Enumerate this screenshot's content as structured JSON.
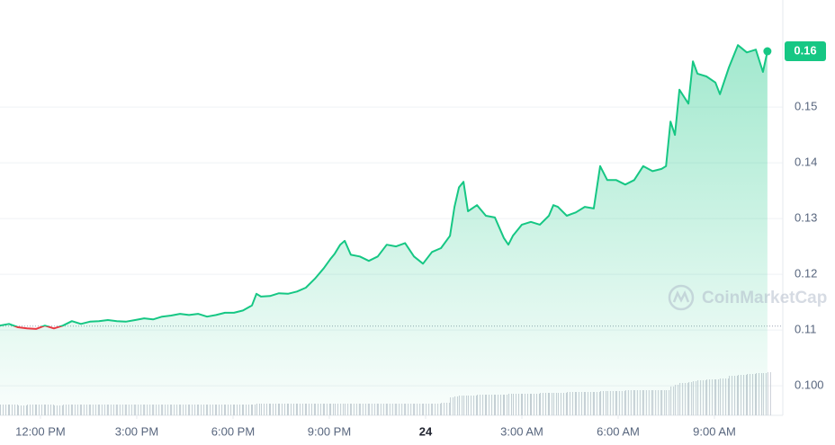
{
  "chart_data": {
    "type": "line",
    "x": [
      10.74,
      11.02,
      11.3,
      11.58,
      11.86,
      12.14,
      12.42,
      12.7,
      12.98,
      13.26,
      13.54,
      13.82,
      14.1,
      14.38,
      14.66,
      14.95,
      15.23,
      15.51,
      15.79,
      16.07,
      16.35,
      16.63,
      16.91,
      17.19,
      17.47,
      17.75,
      18.03,
      18.31,
      18.59,
      18.73,
      18.87,
      19.15,
      19.43,
      19.71,
      19.99,
      20.27,
      20.55,
      20.83,
      21.03,
      21.17,
      21.34,
      21.48,
      21.67,
      21.95,
      22.23,
      22.51,
      22.79,
      23.08,
      23.36,
      23.64,
      23.92,
      24.2,
      24.48,
      24.76,
      24.9,
      25.04,
      25.18,
      25.32,
      25.6,
      25.88,
      26.16,
      26.44,
      26.58,
      26.72,
      27.0,
      27.28,
      27.56,
      27.84,
      27.98,
      28.12,
      28.4,
      28.68,
      28.96,
      29.24,
      29.44,
      29.66,
      29.94,
      30.22,
      30.5,
      30.78,
      31.07,
      31.35,
      31.49,
      31.63,
      31.77,
      31.91,
      32.19,
      32.33,
      32.47,
      32.75,
      33.03,
      33.17,
      33.45,
      33.73,
      34.01,
      34.29,
      34.51,
      34.65
    ],
    "series": [
      {
        "color": "#16c784",
        "values": [
          0.1108,
          0.1111,
          0.1105,
          0.1103,
          0.1102,
          0.1108,
          0.1103,
          0.1108,
          0.1116,
          0.1111,
          0.1115,
          0.1116,
          0.1118,
          0.1116,
          0.1115,
          0.1118,
          0.1121,
          0.1119,
          0.1124,
          0.1126,
          0.1129,
          0.1127,
          0.1129,
          0.1124,
          0.1127,
          0.1131,
          0.1131,
          0.1135,
          0.1144,
          0.1165,
          0.116,
          0.1161,
          0.1166,
          0.1165,
          0.1169,
          0.1176,
          0.1192,
          0.1211,
          0.1227,
          0.1237,
          0.1253,
          0.126,
          0.1235,
          0.1232,
          0.1224,
          0.1232,
          0.1253,
          0.125,
          0.1256,
          0.1232,
          0.1219,
          0.124,
          0.1247,
          0.1269,
          0.1321,
          0.1356,
          0.1366,
          0.1313,
          0.1324,
          0.1305,
          0.1302,
          0.1265,
          0.1253,
          0.1269,
          0.1289,
          0.1294,
          0.1289,
          0.1305,
          0.1324,
          0.1321,
          0.1305,
          0.1311,
          0.1321,
          0.1318,
          0.1394,
          0.1369,
          0.1369,
          0.1361,
          0.1369,
          0.1394,
          0.1385,
          0.1389,
          0.1394,
          0.1474,
          0.145,
          0.1531,
          0.1506,
          0.1582,
          0.156,
          0.1555,
          0.1544,
          0.1523,
          0.1571,
          0.1611,
          0.1598,
          0.1603,
          0.1563,
          0.16
        ]
      }
    ],
    "below_color": "#ea3943",
    "baseline": 0.1107,
    "volume": [
      12,
      12,
      11,
      12,
      12,
      12,
      11,
      12,
      12,
      12,
      12,
      12,
      12,
      12,
      12,
      12,
      12,
      12,
      12,
      12,
      12,
      12,
      12,
      12,
      12,
      12,
      12,
      12,
      12,
      13,
      13,
      13,
      13,
      13,
      13,
      13,
      13,
      13,
      13,
      13,
      13,
      13,
      13,
      13,
      13,
      13,
      13,
      13,
      13,
      13,
      13,
      13,
      14,
      20,
      21,
      22,
      22,
      22,
      23,
      23,
      23,
      23,
      24,
      24,
      24,
      24,
      25,
      25,
      25,
      25,
      26,
      26,
      26,
      26,
      27,
      27,
      27,
      28,
      28,
      28,
      28,
      28,
      28,
      32,
      34,
      36,
      37,
      38,
      39,
      40,
      40,
      41,
      44,
      45,
      46,
      47,
      47,
      48
    ],
    "volume_color": "#c9ced6",
    "volume_lim": [
      0,
      100
    ],
    "xlim": [
      10.74,
      35.13
    ],
    "xticks": [
      {
        "value": 12,
        "label": "12:00 PM"
      },
      {
        "value": 15,
        "label": "3:00 PM"
      },
      {
        "value": 18,
        "label": "6:00 PM"
      },
      {
        "value": 21,
        "label": "9:00 PM"
      },
      24,
      {
        "value": 27,
        "label": "3:00 AM"
      },
      {
        "value": 30,
        "label": "6:00 AM"
      },
      {
        "value": 33,
        "label": "9:00 AM"
      }
    ],
    "ylim": [
      0.0947,
      0.1692
    ],
    "yticks": [
      {
        "value": 0.1,
        "label": "0.100"
      },
      0.11,
      0.12,
      0.13,
      0.14,
      0.15
    ],
    "grid": true,
    "current_price": 0.16,
    "watermark": "CoinMarketCap"
  }
}
